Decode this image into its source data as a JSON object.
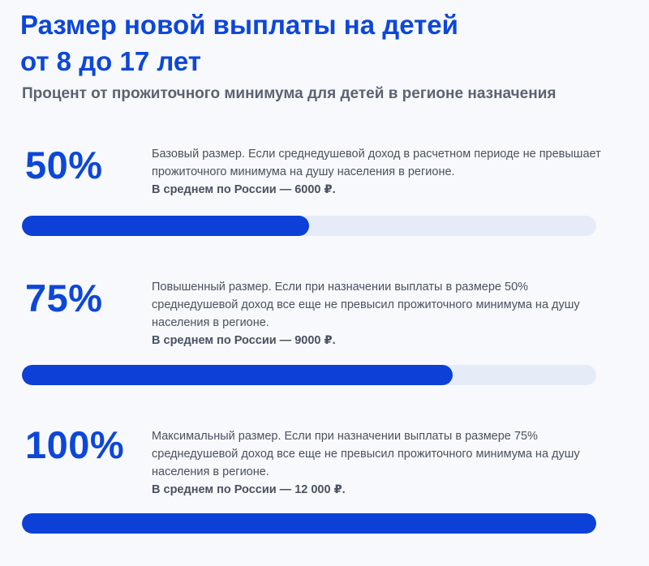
{
  "header": {
    "title_line1": "Размер новой выплаты на детей",
    "title_line2": "от 8 до 17 лет",
    "subtitle": "Процент от прожиточного минимума для детей в регионе назначения"
  },
  "colors": {
    "accent": "#0c40d6",
    "track": "#e6ecf7",
    "text": "#4a5160",
    "background": "#f7f9fc"
  },
  "levels": [
    {
      "percent_label": "50%",
      "description": "Базовый размер. Если среднедушевой доход в расчетном периоде не превышает прожиточного минимума на душу населения в регионе.",
      "average": "В среднем по России — 6000 ₽.",
      "fill_fraction": 0.5
    },
    {
      "percent_label": "75%",
      "description": "Повышенный размер. Если при назначении выплаты в размере 50% среднедушевой доход все еще не превысил прожиточного минимума на душу населения в регионе.",
      "average": "В среднем по России — 9000 ₽.",
      "fill_fraction": 0.75
    },
    {
      "percent_label": "100%",
      "description": "Максимальный размер. Если при назначении выплаты в размере 75% среднедушевой доход все еще не превысил прожиточного минимума на душу населения в регионе.",
      "average": "В среднем по России — 12 000 ₽.",
      "fill_fraction": 1.0
    }
  ]
}
